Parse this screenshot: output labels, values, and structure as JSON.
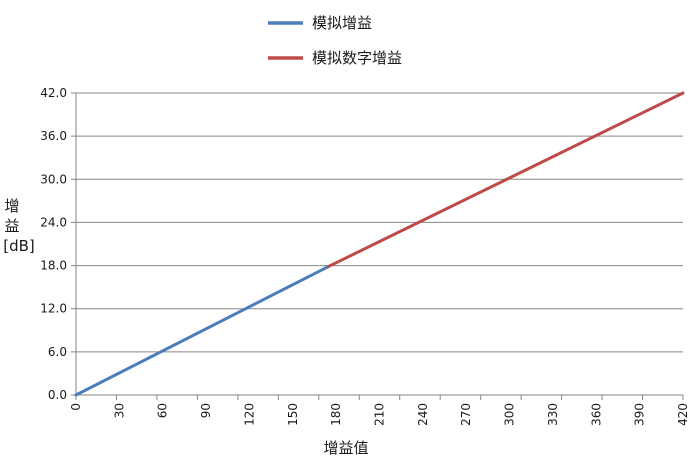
{
  "chart_data": {
    "type": "line",
    "title": "",
    "xlabel": "增益值",
    "ylabel": [
      "增",
      "益",
      "[dB]"
    ],
    "xlim": [
      0,
      420
    ],
    "ylim": [
      0,
      42
    ],
    "x_ticks": [
      "0",
      "30",
      "60",
      "90",
      "120",
      "150",
      "180",
      "210",
      "240",
      "270",
      "300",
      "330",
      "360",
      "390",
      "420"
    ],
    "y_ticks": [
      "0.0",
      "6.0",
      "12.0",
      "18.0",
      "24.0",
      "30.0",
      "36.0",
      "42.0"
    ],
    "grid": "horizontal",
    "legend_position": "top",
    "series": [
      {
        "name": "模拟增益",
        "color": "#4A7EBB",
        "x": [
          0,
          175
        ],
        "y": [
          0,
          17.9
        ]
      },
      {
        "name": "模拟数字增益",
        "color": "#BE4B48",
        "x": [
          175,
          420
        ],
        "y": [
          17.9,
          42
        ]
      }
    ]
  }
}
